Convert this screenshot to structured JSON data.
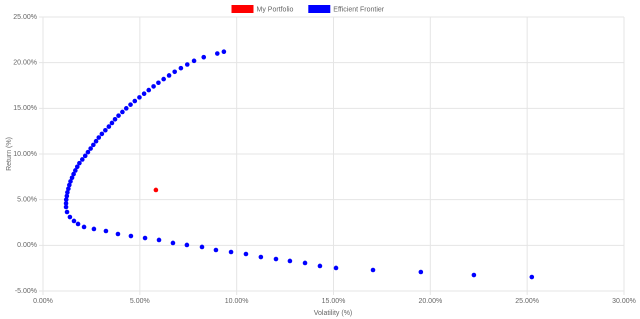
{
  "chart_data": {
    "type": "scatter",
    "xlabel": "Volatility (%)",
    "ylabel": "Return (%)",
    "xlim": [
      0,
      30
    ],
    "ylim": [
      -5,
      25
    ],
    "xticks": [
      {
        "value": 0,
        "label": "0.00%"
      },
      {
        "value": 5,
        "label": "5.00%"
      },
      {
        "value": 10,
        "label": "10.00%"
      },
      {
        "value": 15,
        "label": "15.00%"
      },
      {
        "value": 20,
        "label": "20.00%"
      },
      {
        "value": 25,
        "label": "25.00%"
      },
      {
        "value": 30,
        "label": "30.00%"
      }
    ],
    "yticks": [
      {
        "value": -5,
        "label": "-5.00%"
      },
      {
        "value": 0,
        "label": "0.00%"
      },
      {
        "value": 5,
        "label": "5.00%"
      },
      {
        "value": 10,
        "label": "10.00%"
      },
      {
        "value": 15,
        "label": "15.00%"
      },
      {
        "value": 20,
        "label": "20.00%"
      },
      {
        "value": 25,
        "label": "25.00%"
      }
    ],
    "grid": true,
    "legend": "top",
    "series": [
      {
        "name": "My Portfolio",
        "color": "#ff0000",
        "x": [
          5.83
        ],
        "values": [
          6.06
        ]
      },
      {
        "name": "Efficient Frontier",
        "color": "#0000ff",
        "x": [
          1.19,
          1.2,
          1.23,
          1.26,
          1.31,
          1.36,
          1.42,
          1.5,
          1.58,
          1.67,
          1.77,
          1.88,
          2.03,
          2.18,
          2.32,
          2.46,
          2.6,
          2.74,
          2.88,
          3.04,
          3.22,
          3.4,
          3.56,
          3.72,
          3.9,
          4.1,
          4.3,
          4.52,
          4.74,
          4.98,
          5.22,
          5.46,
          5.71,
          5.96,
          6.23,
          6.51,
          6.8,
          7.12,
          7.45,
          7.8,
          8.3,
          9.0,
          9.34,
          1.19,
          1.24,
          1.39,
          1.6,
          1.81,
          2.12,
          2.63,
          3.25,
          3.87,
          4.54,
          5.27,
          5.99,
          6.71,
          7.43,
          8.21,
          8.93,
          9.71,
          10.48,
          11.25,
          12.03,
          12.75,
          13.53,
          14.3,
          15.13,
          17.04,
          19.51,
          22.25,
          25.24
        ],
        "values": [
          4.6,
          5.0,
          5.4,
          5.8,
          6.2,
          6.6,
          7.0,
          7.4,
          7.8,
          8.2,
          8.6,
          9.0,
          9.4,
          9.8,
          10.2,
          10.6,
          11.0,
          11.4,
          11.8,
          12.2,
          12.6,
          13.0,
          13.4,
          13.8,
          14.2,
          14.6,
          15.0,
          15.4,
          15.8,
          16.2,
          16.6,
          17.0,
          17.4,
          17.8,
          18.2,
          18.6,
          19.0,
          19.4,
          19.8,
          20.2,
          20.6,
          21.0,
          21.2,
          4.2,
          3.65,
          3.1,
          2.67,
          2.34,
          2.01,
          1.79,
          1.57,
          1.24,
          1.02,
          0.8,
          0.59,
          0.26,
          0.04,
          -0.18,
          -0.51,
          -0.73,
          -0.95,
          -1.28,
          -1.5,
          -1.71,
          -1.93,
          -2.26,
          -2.48,
          -2.7,
          -2.92,
          -3.25,
          -3.47
        ]
      }
    ]
  }
}
